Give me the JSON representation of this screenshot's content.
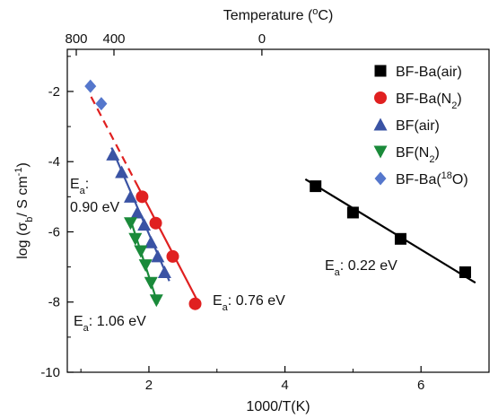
{
  "chart_data": {
    "type": "scatter",
    "xlabel": "1000/T(K)",
    "ylabel": "log (σb / S cm⁻¹)",
    "x2label": "Temperature (°C)",
    "xlim": [
      0.8,
      7.0
    ],
    "ylim": [
      -10,
      -0.8
    ],
    "xticks": [
      2,
      4,
      6
    ],
    "yticks": [
      -10,
      -8,
      -6,
      -4,
      -2
    ],
    "top_ticks": [
      {
        "label": "800",
        "x": 0.932
      },
      {
        "label": "400",
        "x": 1.486
      },
      {
        "label": "0",
        "x": 3.661
      }
    ],
    "grid": false,
    "legend_position": "top-right",
    "series": [
      {
        "name": "BF-Ba(air)",
        "marker": "square",
        "color": "#000000",
        "x": [
          4.45,
          5.0,
          5.7,
          6.65
        ],
        "y": [
          -4.7,
          -5.45,
          -6.2,
          -7.15
        ],
        "fit": {
          "x": [
            4.3,
            6.8
          ],
          "y": [
            -4.5,
            -7.45
          ],
          "color": "#000000",
          "dashed_to": null
        }
      },
      {
        "name": "BF-Ba(N₂)",
        "marker": "circle",
        "color": "#e02020",
        "x": [
          1.9,
          2.1,
          2.35,
          2.68
        ],
        "y": [
          -5.0,
          -5.75,
          -6.7,
          -8.05
        ],
        "fit": {
          "x": [
            1.15,
            2.75
          ],
          "y": [
            -2.15,
            -8.1
          ],
          "color": "#e02020",
          "dashed_to": 1.8
        }
      },
      {
        "name": "BF(air)",
        "marker": "triangle-up",
        "color": "#3a53a4",
        "x": [
          1.47,
          1.6,
          1.73,
          1.83,
          1.93,
          2.03,
          2.13,
          2.23
        ],
        "y": [
          -3.8,
          -4.3,
          -5.0,
          -5.45,
          -5.8,
          -6.3,
          -6.7,
          -7.15
        ],
        "fit": {
          "x": [
            1.45,
            2.3
          ],
          "y": [
            -3.6,
            -7.4
          ],
          "color": "#3a53a4",
          "dashed_to": null
        }
      },
      {
        "name": "BF(N₂)",
        "marker": "triangle-down",
        "color": "#1a8a3a",
        "x": [
          1.73,
          1.8,
          1.88,
          1.95,
          2.03,
          2.11
        ],
        "y": [
          -5.75,
          -6.2,
          -6.55,
          -6.95,
          -7.45,
          -7.95
        ],
        "fit": {
          "x": [
            1.72,
            2.13
          ],
          "y": [
            -5.6,
            -8.05
          ],
          "color": "#1a8a3a",
          "dashed_to": null
        }
      },
      {
        "name": "BF-Ba(¹⁸O)",
        "marker": "diamond",
        "color": "#5577cc",
        "x": [
          1.14,
          1.3
        ],
        "y": [
          -1.85,
          -2.35
        ],
        "fit": null
      }
    ],
    "annotations": [
      {
        "text": "Ea: 0.90 eV"
      },
      {
        "text": "Ea: 1.06 eV"
      },
      {
        "text": "Ea: 0.76 eV"
      },
      {
        "text": "Ea: 0.22 eV"
      }
    ]
  }
}
